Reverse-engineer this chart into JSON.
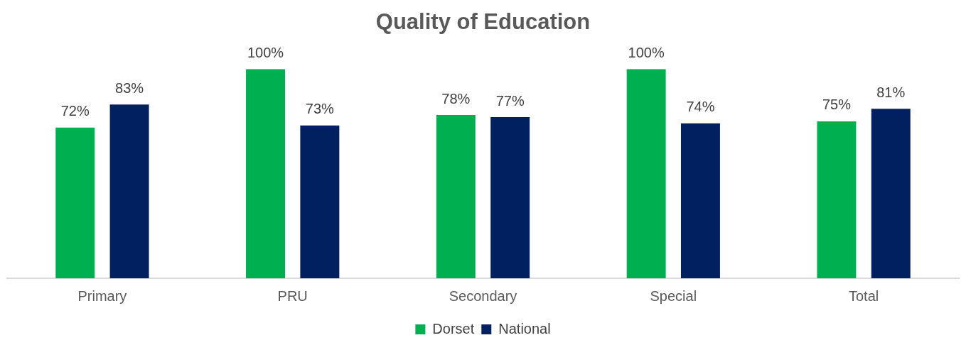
{
  "chart_data": {
    "type": "bar",
    "title": "Quality of Education",
    "categories": [
      "Primary",
      "PRU",
      "Secondary",
      "Special",
      "Total"
    ],
    "series": [
      {
        "name": "Dorset",
        "color": "#00b050",
        "values": [
          72,
          100,
          78,
          100,
          75
        ],
        "value_labels": [
          "72%",
          "100%",
          "78%",
          "100%",
          "75%"
        ]
      },
      {
        "name": "National",
        "color": "#002060",
        "values": [
          83,
          73,
          77,
          74,
          81
        ],
        "value_labels": [
          "83%",
          "73%",
          "77%",
          "74%",
          "81%"
        ]
      }
    ],
    "legend": "bottom",
    "grid": false
  }
}
